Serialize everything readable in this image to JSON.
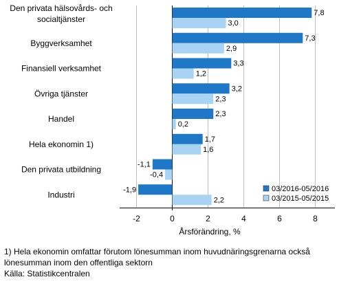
{
  "chart_data": {
    "type": "bar",
    "orientation": "horizontal",
    "categories": [
      [
        "Den privata hälsovårds- och",
        "socialtjänster"
      ],
      [
        "Byggverksamhet"
      ],
      [
        "Finansiell verksamhet"
      ],
      [
        "Övriga tjänster"
      ],
      [
        "Handel"
      ],
      [
        "Hela ekonomin 1)"
      ],
      [
        "Den privata utbildning"
      ],
      [
        "Industri"
      ]
    ],
    "series": [
      {
        "name": "03/2016-05/2016",
        "color": "#1f77c8",
        "values": [
          7.8,
          7.3,
          3.3,
          3.2,
          2.3,
          1.7,
          -1.1,
          -1.9
        ],
        "labels": [
          "7,8",
          "7,3",
          "3,3",
          "3,2",
          "2,3",
          "1,7",
          "-1,1",
          "-1,9"
        ]
      },
      {
        "name": "03/2015-05/2015",
        "color": "#a9d3f2",
        "values": [
          3.0,
          2.9,
          1.2,
          2.3,
          0.2,
          1.6,
          -0.4,
          2.2
        ],
        "labels": [
          "3,0",
          "2,9",
          "1,2",
          "2,3",
          "0,2",
          "1,6",
          "-0,4",
          "2,2"
        ]
      }
    ],
    "xlim": [
      -3,
      9
    ],
    "xticks": [
      -2,
      0,
      2,
      4,
      6,
      8
    ],
    "xlabel": "Årsförändring, %",
    "grid": "vertical",
    "legend_position": "bottom-right"
  },
  "footnote": "1) Hela ekonomin omfattar förutom lönesumman inom huvudnäringsgrenarna också lönesumman inom den offentliga sektorn",
  "source": "Källa: Statistikcentralen"
}
